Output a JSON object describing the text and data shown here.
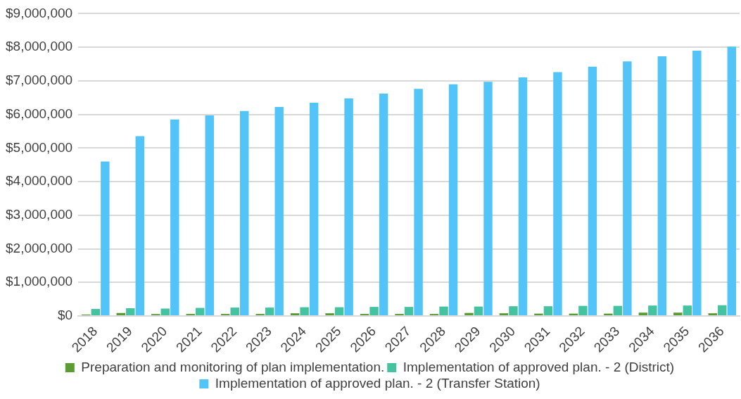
{
  "chart_data": {
    "type": "bar",
    "categories": [
      "2018",
      "2019",
      "2020",
      "2021",
      "2022",
      "2023",
      "2024",
      "2025",
      "2026",
      "2027",
      "2028",
      "2029",
      "2030",
      "2031",
      "2032",
      "2033",
      "2034",
      "2035",
      "2036"
    ],
    "series": [
      {
        "name": "Preparation and monitoring of plan implementation.",
        "color": "#5a9b34",
        "values": [
          40000,
          90000,
          60000,
          60000,
          60000,
          60000,
          80000,
          80000,
          60000,
          60000,
          60000,
          90000,
          80000,
          70000,
          70000,
          70000,
          100000,
          100000,
          80000
        ]
      },
      {
        "name": "Implementation of approved plan. - 2 (District)",
        "color": "#45c3a0",
        "values": [
          210000,
          230000,
          220000,
          240000,
          250000,
          250000,
          260000,
          260000,
          270000,
          270000,
          280000,
          280000,
          290000,
          290000,
          300000,
          300000,
          310000,
          310000,
          320000
        ]
      },
      {
        "name": "Implementation of approved plan. - 2 (Transfer Station)",
        "color": "#52c4f8",
        "values": [
          4600000,
          5350000,
          5850000,
          5970000,
          6100000,
          6220000,
          6350000,
          6480000,
          6620000,
          6760000,
          6900000,
          6970000,
          7100000,
          7260000,
          7420000,
          7580000,
          7730000,
          7900000,
          8020000
        ]
      }
    ],
    "ylim": [
      0,
      9000000
    ],
    "yticks": [
      {
        "value": 0,
        "label": "$0"
      },
      {
        "value": 1000000,
        "label": "$1,000,000"
      },
      {
        "value": 2000000,
        "label": "$2,000,000"
      },
      {
        "value": 3000000,
        "label": "$3,000,000"
      },
      {
        "value": 4000000,
        "label": "$4,000,000"
      },
      {
        "value": 5000000,
        "label": "$5,000,000"
      },
      {
        "value": 6000000,
        "label": "$6,000,000"
      },
      {
        "value": 7000000,
        "label": "$7,000,000"
      },
      {
        "value": 8000000,
        "label": "$8,000,000"
      },
      {
        "value": 9000000,
        "label": "$9,000,000"
      }
    ],
    "grid": "y",
    "legend": "bottom"
  }
}
